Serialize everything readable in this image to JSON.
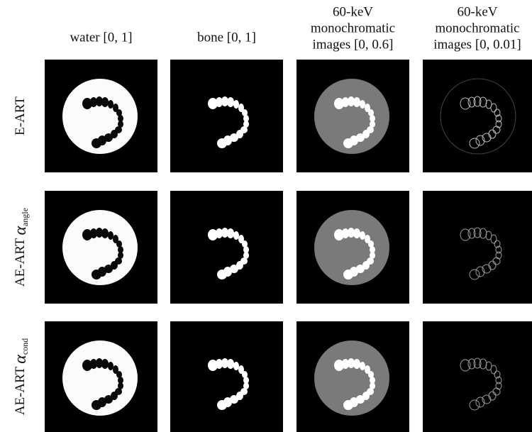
{
  "columns": [
    {
      "lines": [
        "water [0, 1]"
      ]
    },
    {
      "lines": [
        "bone [0, 1]"
      ]
    },
    {
      "lines": [
        "60-keV",
        "monochromatic",
        "images [0, 0.6]"
      ]
    },
    {
      "lines": [
        "60-keV",
        "monochromatic",
        "images [0, 0.01]"
      ]
    }
  ],
  "rows": [
    {
      "label": "E-ART"
    },
    {
      "label": "AE-ART",
      "symbol": "α",
      "subscript": "angle"
    },
    {
      "label": "AE-ART",
      "symbol": "α",
      "subscript": "cond"
    }
  ]
}
